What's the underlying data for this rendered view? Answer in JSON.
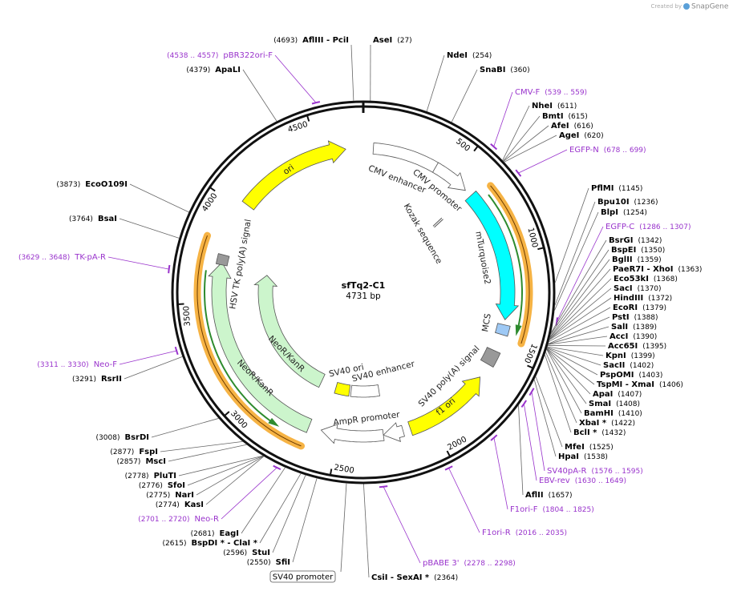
{
  "header": {
    "credit": "Created by",
    "brand": "SnapGene"
  },
  "plasmid": {
    "name": "sfTq2-C1",
    "length": "4731 bp"
  },
  "ruler": [
    "500",
    "1000",
    "1500",
    "2000",
    "2500",
    "3000",
    "3500",
    "4000",
    "4500"
  ],
  "features": [
    "ori",
    "CMV enhancer",
    "CMV promoter",
    "Kozak sequence",
    "mTurquoise2",
    "MCS",
    "SV40 poly(A) signal",
    "f1 ori",
    "SV40 ori",
    "SV40 enhancer",
    "AmpR promoter",
    "NeoR/KanR",
    "NeoR/KanR",
    "HSV TK poly(A) signal"
  ],
  "boxed_label": "SV40 promoter",
  "sites": [
    {
      "name": "AseI",
      "pos": "(27)"
    },
    {
      "name": "NdeI",
      "pos": "(254)"
    },
    {
      "name": "SnaBI",
      "pos": "(360)"
    },
    {
      "name": "CMV-F",
      "pos": "(539 .. 559)"
    },
    {
      "name": "NheI",
      "pos": "(611)"
    },
    {
      "name": "BmtI",
      "pos": "(615)"
    },
    {
      "name": "AfeI",
      "pos": "(616)"
    },
    {
      "name": "AgeI",
      "pos": "(620)"
    },
    {
      "name": "EGFP-N",
      "pos": "(678 .. 699)"
    },
    {
      "name": "PflMI",
      "pos": "(1145)"
    },
    {
      "name": "Bpu10I",
      "pos": "(1236)"
    },
    {
      "name": "BlpI",
      "pos": "(1254)"
    },
    {
      "name": "EGFP-C",
      "pos": "(1286 .. 1307)"
    },
    {
      "name": "BsrGI",
      "pos": "(1342)"
    },
    {
      "name": "BspEI",
      "pos": "(1350)"
    },
    {
      "name": "BglII",
      "pos": "(1359)"
    },
    {
      "name": "PaeR7I - XhoI",
      "pos": "(1363)"
    },
    {
      "name": "Eco53kI",
      "pos": "(1368)"
    },
    {
      "name": "SacI",
      "pos": "(1370)"
    },
    {
      "name": "HindIII",
      "pos": "(1372)"
    },
    {
      "name": "EcoRI",
      "pos": "(1379)"
    },
    {
      "name": "PstI",
      "pos": "(1388)"
    },
    {
      "name": "SalI",
      "pos": "(1389)"
    },
    {
      "name": "AccI",
      "pos": "(1390)"
    },
    {
      "name": "Acc65I",
      "pos": "(1395)"
    },
    {
      "name": "KpnI",
      "pos": "(1399)"
    },
    {
      "name": "SacII",
      "pos": "(1402)"
    },
    {
      "name": "PspOMI",
      "pos": "(1403)"
    },
    {
      "name": "TspMI - XmaI",
      "pos": "(1406)"
    },
    {
      "name": "ApaI",
      "pos": "(1407)"
    },
    {
      "name": "SmaI",
      "pos": "(1408)"
    },
    {
      "name": "BamHI",
      "pos": "(1410)"
    },
    {
      "name": "XbaI *",
      "pos": "(1422)"
    },
    {
      "name": "BclI *",
      "pos": "(1432)"
    },
    {
      "name": "MfeI",
      "pos": "(1525)"
    },
    {
      "name": "HpaI",
      "pos": "(1538)"
    },
    {
      "name": "SV40pA-R",
      "pos": "(1576 .. 1595)"
    },
    {
      "name": "EBV-rev",
      "pos": "(1630 .. 1649)"
    },
    {
      "name": "AflII",
      "pos": "(1657)"
    },
    {
      "name": "F1ori-F",
      "pos": "(1804 .. 1825)"
    },
    {
      "name": "F1ori-R",
      "pos": "(2016 .. 2035)"
    },
    {
      "name": "pBABE 3'",
      "pos": "(2278 .. 2298)"
    },
    {
      "name": "CsiI - SexAI *",
      "pos": "(2364)"
    },
    {
      "name": "AflIII - PciI",
      "pos": "(4693)"
    },
    {
      "name": "pBR322ori-F",
      "pos": "(4538 .. 4557)"
    },
    {
      "name": "ApaLI",
      "pos": "(4379)"
    },
    {
      "name": "EcoO109I",
      "pos": "(3873)"
    },
    {
      "name": "BsaI",
      "pos": "(3764)"
    },
    {
      "name": "TK-pA-R",
      "pos": "(3629 .. 3648)"
    },
    {
      "name": "Neo-F",
      "pos": "(3311 .. 3330)"
    },
    {
      "name": "RsrII",
      "pos": "(3291)"
    },
    {
      "name": "BsrDI",
      "pos": "(3008)"
    },
    {
      "name": "FspI",
      "pos": "(2877)"
    },
    {
      "name": "MscI",
      "pos": "(2857)"
    },
    {
      "name": "PluTI",
      "pos": "(2778)"
    },
    {
      "name": "SfoI",
      "pos": "(2776)"
    },
    {
      "name": "NarI",
      "pos": "(2775)"
    },
    {
      "name": "KasI",
      "pos": "(2774)"
    },
    {
      "name": "Neo-R",
      "pos": "(2701 .. 2720)"
    },
    {
      "name": "EagI",
      "pos": "(2681)"
    },
    {
      "name": "BspDI * - ClaI *",
      "pos": "(2615)"
    },
    {
      "name": "StuI",
      "pos": "(2596)"
    },
    {
      "name": "SfiI",
      "pos": "(2550)"
    }
  ]
}
